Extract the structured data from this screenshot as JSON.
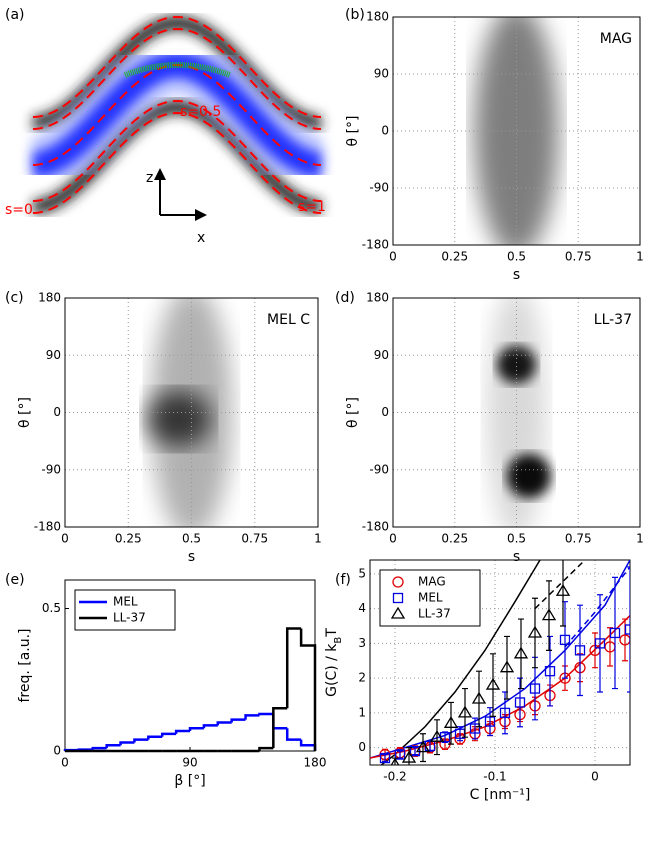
{
  "chart_data": [
    {
      "panel": "(a)",
      "type": "diagram",
      "labels": [
        "s=0.5",
        "s=0",
        "s=1",
        "z",
        "x"
      ]
    },
    {
      "panel": "(b)",
      "type": "heatmap",
      "annotation": "MAG",
      "xlabel": "s",
      "ylabel": "θ [°]",
      "xlim": [
        0,
        1
      ],
      "ylim": [
        -180,
        180
      ],
      "xticks": [
        0,
        0.25,
        0.5,
        0.75,
        1
      ],
      "yticks": [
        180,
        90,
        0,
        -90,
        -180
      ],
      "grid": true
    },
    {
      "panel": "(c)",
      "type": "heatmap",
      "annotation": "MEL C",
      "xlabel": "s",
      "ylabel": "θ [°]",
      "xlim": [
        0,
        1
      ],
      "ylim": [
        -180,
        180
      ],
      "xticks": [
        0,
        0.25,
        0.5,
        0.75,
        1
      ],
      "yticks": [
        180,
        90,
        0,
        -90,
        -180
      ],
      "grid": true
    },
    {
      "panel": "(d)",
      "type": "heatmap",
      "annotation": "LL-37",
      "xlabel": "s",
      "ylabel": "θ [°]",
      "xlim": [
        0,
        1
      ],
      "ylim": [
        -180,
        180
      ],
      "xticks": [
        0,
        0.25,
        0.5,
        0.75,
        1
      ],
      "yticks": [
        180,
        90,
        0,
        -90,
        -180
      ],
      "grid": true
    },
    {
      "panel": "(e)",
      "type": "histogram",
      "xlabel": "β [°]",
      "ylabel": "freq. [a.u.]",
      "xlim": [
        0,
        180
      ],
      "ylim": [
        0,
        0.6
      ],
      "xticks": [
        0,
        90,
        180
      ],
      "yticks": [
        0,
        0.5
      ],
      "legend": "upper left",
      "bins": [
        0,
        10,
        20,
        30,
        40,
        50,
        60,
        70,
        80,
        90,
        100,
        110,
        120,
        130,
        140,
        150,
        160,
        170,
        180
      ],
      "series": [
        {
          "name": "MEL",
          "color": "#0000ff",
          "values": [
            0.003,
            0.005,
            0.01,
            0.02,
            0.03,
            0.04,
            0.05,
            0.06,
            0.07,
            0.08,
            0.09,
            0.1,
            0.11,
            0.125,
            0.13,
            0.08,
            0.04,
            0.02
          ]
        },
        {
          "name": "LL-37",
          "color": "#000000",
          "values": [
            0,
            0,
            0,
            0,
            0,
            0,
            0,
            0,
            0,
            0,
            0,
            0,
            0,
            0,
            0.01,
            0.15,
            0.43,
            0.37
          ]
        }
      ]
    },
    {
      "panel": "(f)",
      "type": "scatter",
      "xlabel": "C [nm⁻¹]",
      "ylabel": [
        "G(C) / k",
        "B",
        "T"
      ],
      "xlim": [
        -0.225,
        0.035
      ],
      "ylim": [
        -0.5,
        5.4
      ],
      "xticks": [
        -0.2,
        -0.1,
        0
      ],
      "yticks": [
        0,
        1,
        2,
        3,
        4,
        5
      ],
      "grid": true,
      "legend": "upper left",
      "series": [
        {
          "name": "MAG",
          "color": "#e00000",
          "marker": "circle",
          "x": [
            -0.21,
            -0.195,
            -0.18,
            -0.165,
            -0.15,
            -0.135,
            -0.12,
            -0.105,
            -0.09,
            -0.075,
            -0.06,
            -0.045,
            -0.03,
            -0.015,
            0,
            0.015,
            0.03
          ],
          "values": [
            -0.2,
            -0.15,
            -0.1,
            0,
            0.1,
            0.25,
            0.4,
            0.55,
            0.75,
            0.95,
            1.2,
            1.5,
            2.0,
            2.3,
            2.8,
            2.9,
            3.1
          ],
          "errors": [
            0.15,
            0.15,
            0.15,
            0.15,
            0.15,
            0.15,
            0.2,
            0.2,
            0.2,
            0.2,
            0.25,
            0.3,
            0.35,
            0.4,
            0.5,
            0.55,
            0.6
          ]
        },
        {
          "name": "MEL",
          "color": "#0000e0",
          "marker": "square",
          "x": [
            -0.21,
            -0.195,
            -0.18,
            -0.165,
            -0.15,
            -0.135,
            -0.12,
            -0.105,
            -0.09,
            -0.075,
            -0.06,
            -0.045,
            -0.03,
            -0.015,
            0.005,
            0.02,
            0.035
          ],
          "values": [
            -0.3,
            -0.2,
            -0.1,
            0.05,
            0.3,
            0.4,
            0.55,
            0.75,
            1.0,
            1.3,
            1.7,
            2.2,
            3.1,
            2.8,
            3.0,
            3.3,
            3.4
          ],
          "errors": [
            0.1,
            0.1,
            0.1,
            0.15,
            0.15,
            0.2,
            0.3,
            0.4,
            0.6,
            0.7,
            0.9,
            1.0,
            1.1,
            1.3,
            1.4,
            1.6,
            1.8
          ]
        },
        {
          "name": "LL-37",
          "color": "#000000",
          "marker": "triangle",
          "x": [
            -0.2,
            -0.186,
            -0.172,
            -0.158,
            -0.144,
            -0.13,
            -0.116,
            -0.102,
            -0.088,
            -0.074,
            -0.06,
            -0.046,
            -0.032
          ],
          "values": [
            -0.5,
            -0.3,
            0,
            0.3,
            0.7,
            1.0,
            1.4,
            1.8,
            2.3,
            2.7,
            3.3,
            3.8,
            4.5
          ],
          "errors": [
            0.2,
            0.3,
            0.4,
            0.5,
            0.6,
            0.7,
            0.8,
            0.9,
            0.9,
            1.0,
            1.0,
            1.0,
            1.0
          ]
        }
      ],
      "fits": [
        {
          "color": "#000000",
          "dash": false,
          "x": [
            -0.225,
            -0.2,
            -0.17,
            -0.14,
            -0.11,
            -0.08,
            -0.055
          ],
          "values": [
            -0.75,
            -0.2,
            0.6,
            1.6,
            2.8,
            4.2,
            5.4
          ]
        },
        {
          "color": "#000000",
          "dash": true,
          "x": [
            -0.06,
            -0.035,
            -0.01
          ],
          "values": [
            4.0,
            4.7,
            5.4
          ]
        },
        {
          "color": "#0000e0",
          "dash": false,
          "x": [
            -0.225,
            -0.19,
            -0.15,
            -0.11,
            -0.07,
            -0.03,
            0.01,
            0.035
          ],
          "values": [
            -0.3,
            0,
            0.35,
            0.9,
            1.7,
            2.8,
            4.1,
            5.4
          ]
        },
        {
          "color": "#0000e0",
          "dash": true,
          "x": [
            -0.03,
            0,
            0.035
          ],
          "values": [
            2.9,
            3.9,
            5.2
          ]
        },
        {
          "color": "#e00000",
          "dash": false,
          "x": [
            -0.225,
            -0.19,
            -0.15,
            -0.11,
            -0.07,
            -0.03,
            0.01,
            0.035
          ],
          "values": [
            -0.3,
            -0.1,
            0.2,
            0.6,
            1.2,
            2.0,
            3.1,
            3.8
          ]
        }
      ]
    }
  ]
}
